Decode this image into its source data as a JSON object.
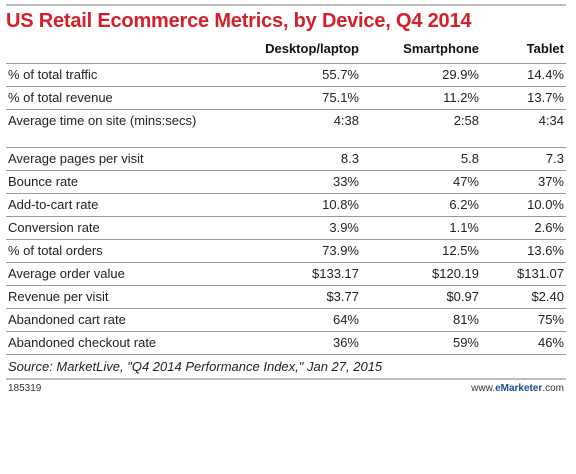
{
  "chart_data": {
    "type": "table",
    "title": "US Retail Ecommerce Metrics, by Device, Q4 2014",
    "columns": [
      "",
      "Desktop/laptop",
      "Smartphone",
      "Tablet"
    ],
    "rows": [
      {
        "label": "% of total traffic",
        "values": [
          "55.7%",
          "29.9%",
          "14.4%"
        ]
      },
      {
        "label": "% of total revenue",
        "values": [
          "75.1%",
          "11.2%",
          "13.7%"
        ]
      },
      {
        "label": "Average time on site (mins:secs)",
        "values": [
          "4:38",
          "2:58",
          "4:34"
        ]
      },
      {
        "label": "Average pages per visit",
        "values": [
          "8.3",
          "5.8",
          "7.3"
        ]
      },
      {
        "label": "Bounce rate",
        "values": [
          "33%",
          "47%",
          "37%"
        ]
      },
      {
        "label": "Add-to-cart rate",
        "values": [
          "10.8%",
          "6.2%",
          "10.0%"
        ]
      },
      {
        "label": "Conversion rate",
        "values": [
          "3.9%",
          "1.1%",
          "2.6%"
        ]
      },
      {
        "label": "% of total orders",
        "values": [
          "73.9%",
          "12.5%",
          "13.6%"
        ]
      },
      {
        "label": "Average order value",
        "values": [
          "$133.17",
          "$120.19",
          "$131.07"
        ]
      },
      {
        "label": "Revenue per visit",
        "values": [
          "$3.77",
          "$0.97",
          "$2.40"
        ]
      },
      {
        "label": "Abandoned cart rate",
        "values": [
          "64%",
          "81%",
          "75%"
        ]
      },
      {
        "label": "Abandoned checkout rate",
        "values": [
          "36%",
          "59%",
          "46%"
        ]
      }
    ],
    "source": "Source: MarketLive, \"Q4 2014 Performance Index,\" Jan 27, 2015"
  },
  "footer": {
    "id": "185319",
    "brand_prefix": "www.",
    "brand_e": "e",
    "brand_name": "Marketer",
    "brand_suffix": ".com"
  },
  "colors": {
    "title": "#d4202a",
    "brand": "#1a4e8f",
    "rule": "#9a9a9a"
  }
}
